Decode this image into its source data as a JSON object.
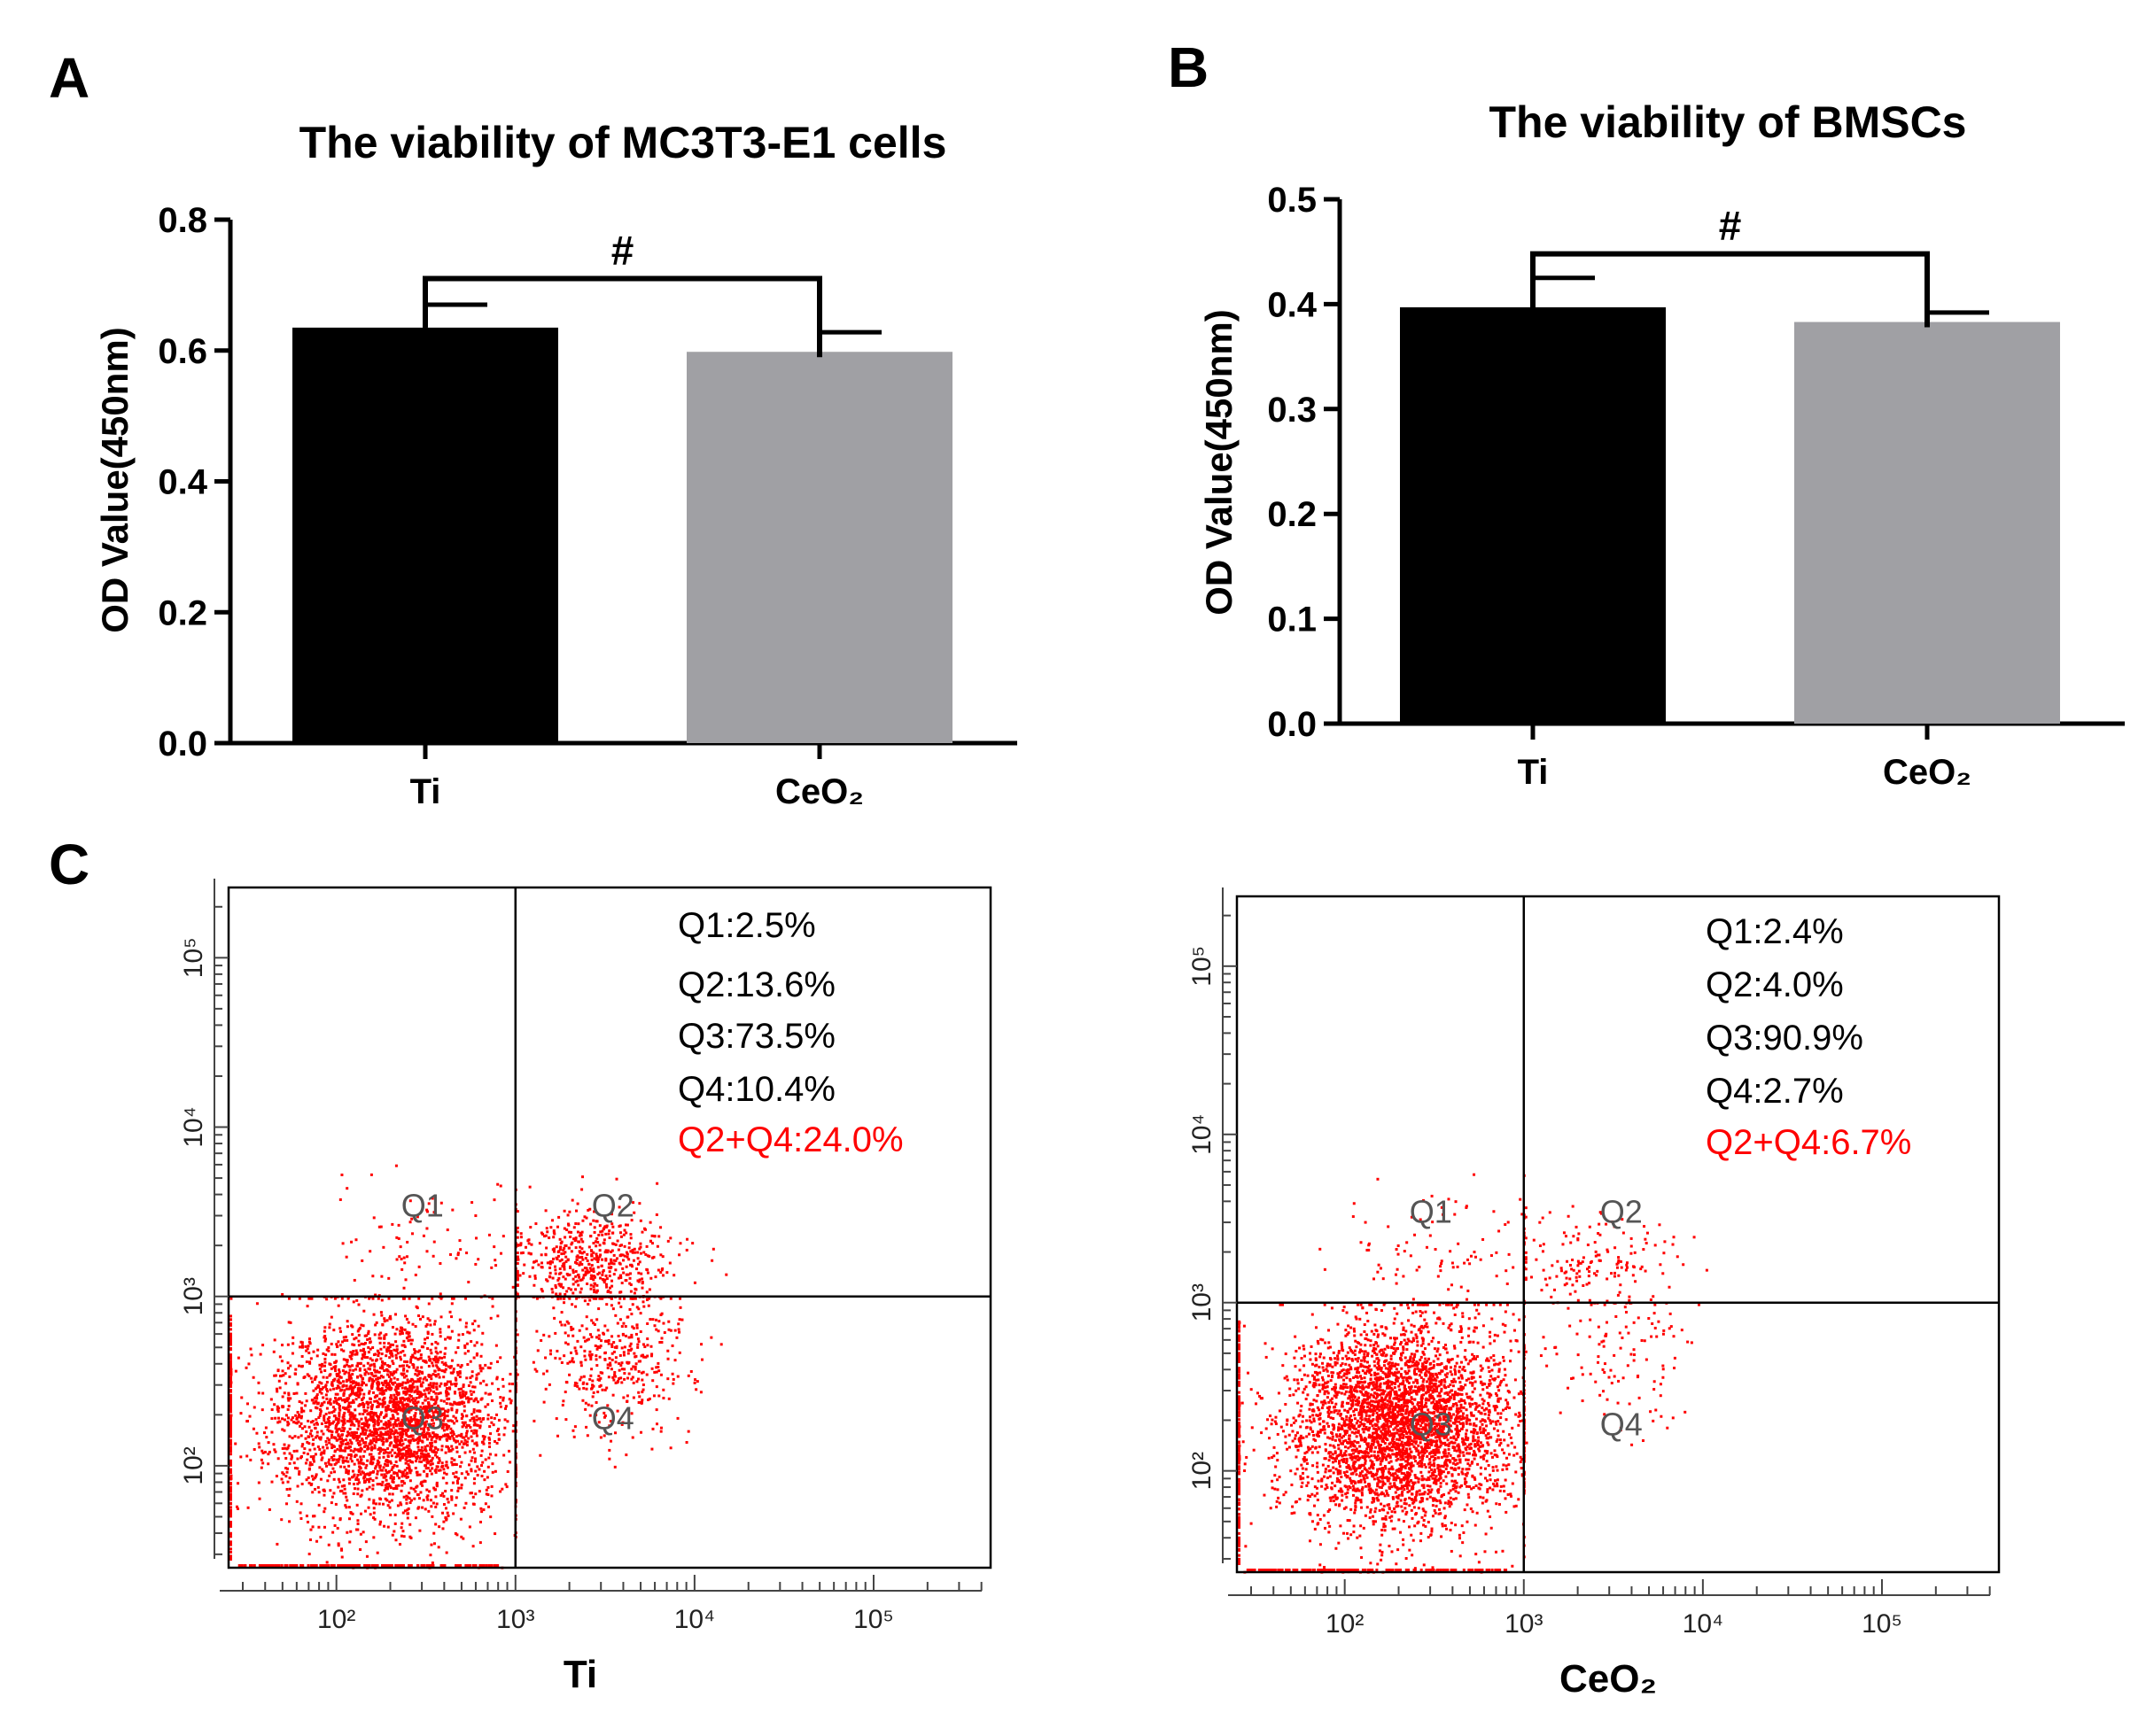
{
  "panels": {
    "A": {
      "letter": "A"
    },
    "B": {
      "letter": "B"
    },
    "C": {
      "letter": "C"
    }
  },
  "chart_data": [
    {
      "id": "A",
      "type": "bar",
      "title": "The viability of MC3T3-E1 cells",
      "xlabel": "",
      "ylabel": "OD Value(450nm)",
      "categories": [
        "Ti",
        "CeO₂"
      ],
      "values": [
        0.635,
        0.598
      ],
      "errors": [
        0.035,
        0.03
      ],
      "colors": [
        "#000000",
        "#a0a0a4"
      ],
      "ylim": [
        0,
        0.8
      ],
      "yticks": [
        0.0,
        0.2,
        0.4,
        0.6,
        0.8
      ],
      "ytick_labels": [
        "0.0",
        "0.2",
        "0.4",
        "0.6",
        "0.8"
      ],
      "bracket_y": 0.71,
      "significance": "#"
    },
    {
      "id": "B",
      "type": "bar",
      "title": "The viability of BMSCs",
      "xlabel": "",
      "ylabel": "OD Value(450nm)",
      "categories": [
        "Ti",
        "CeO₂"
      ],
      "values": [
        0.397,
        0.383
      ],
      "errors": [
        0.028,
        0.009
      ],
      "colors": [
        "#000000",
        "#a0a0a4"
      ],
      "ylim": [
        0,
        0.5
      ],
      "yticks": [
        0.0,
        0.1,
        0.2,
        0.3,
        0.4,
        0.5
      ],
      "ytick_labels": [
        "0.0",
        "0.1",
        "0.2",
        "0.3",
        "0.4",
        "0.5"
      ],
      "bracket_y": 0.448,
      "significance": "#"
    },
    {
      "id": "C-Ti",
      "type": "scatter",
      "xlabel": "Ti",
      "ylabel": "",
      "x_scale": "log",
      "y_scale": "log",
      "xlim": [
        25,
        450000
      ],
      "ylim": [
        25,
        260000
      ],
      "x_gate": 1000,
      "y_gate": 1000,
      "xtick_labels": [
        "10²",
        "10³",
        "10⁴",
        "10⁵"
      ],
      "ytick_labels": [
        "10²",
        "10³",
        "10⁴",
        "10⁵"
      ],
      "quadrant_labels": [
        "Q1",
        "Q2",
        "Q3",
        "Q4"
      ],
      "stats": [
        "Q1:2.5%",
        "Q2:13.6%",
        "Q3:73.5%",
        "Q4:10.4%"
      ],
      "highlight_stat": "Q2+Q4:24.0%",
      "quadrant_percent": {
        "Q1": 2.5,
        "Q2": 13.6,
        "Q3": 73.5,
        "Q4": 10.4
      },
      "point_color": "#ff0000",
      "highlight_color": "#ff0000",
      "seed": 11
    },
    {
      "id": "C-CeO2",
      "type": "scatter",
      "xlabel": "CeO₂",
      "ylabel": "",
      "x_scale": "log",
      "y_scale": "log",
      "xlim": [
        25,
        450000
      ],
      "ylim": [
        25,
        260000
      ],
      "x_gate": 1000,
      "y_gate": 1000,
      "xtick_labels": [
        "10²",
        "10³",
        "10⁴",
        "10⁵"
      ],
      "ytick_labels": [
        "10²",
        "10³",
        "10⁴",
        "10⁵"
      ],
      "quadrant_labels": [
        "Q1",
        "Q2",
        "Q3",
        "Q4"
      ],
      "stats": [
        "Q1:2.4%",
        "Q2:4.0%",
        "Q3:90.9%",
        "Q4:2.7%"
      ],
      "highlight_stat": "Q2+Q4:6.7%",
      "quadrant_percent": {
        "Q1": 2.4,
        "Q2": 4.0,
        "Q3": 90.9,
        "Q4": 2.7
      },
      "point_color": "#ff0000",
      "highlight_color": "#ff0000",
      "seed": 29
    }
  ]
}
